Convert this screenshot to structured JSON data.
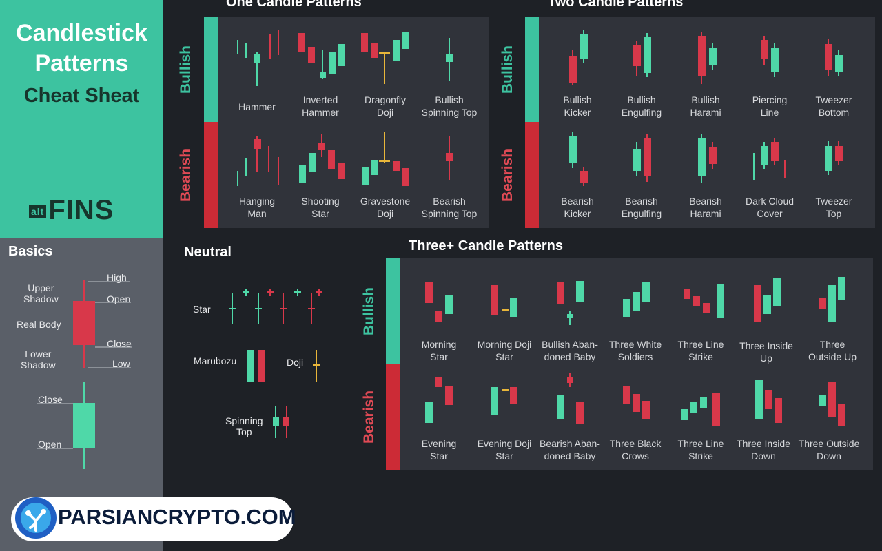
{
  "header": {
    "title_line1": "Candlestick",
    "title_line2": "Patterns",
    "subtitle": "Cheat Sheat",
    "logo_small": "alt",
    "logo_big": "FINS"
  },
  "basics": {
    "title": "Basics",
    "upper_shadow": "Upper\nShadow",
    "real_body": "Real Body",
    "lower_shadow": "Lower\nShadow",
    "high": "High",
    "open": "Open",
    "close": "Close",
    "low": "Low",
    "close2": "Close",
    "open2": "Open"
  },
  "one_candle": {
    "title": "One Candle Patterns",
    "bullish_label": "Bullish",
    "bearish_label": "Bearish",
    "bullish": [
      "Hammer",
      "Inverted\nHammer",
      "Dragonfly\nDoji",
      "Bullish\nSpinning Top"
    ],
    "bearish": [
      "Hanging\nMan",
      "Shooting\nStar",
      "Gravestone\nDoji",
      "Bearish\nSpinning Top"
    ]
  },
  "two_candle": {
    "title": "Two Candle Patterns",
    "bullish_label": "Bullish",
    "bearish_label": "Bearish",
    "bullish": [
      "Bullish\nKicker",
      "Bullish\nEngulfing",
      "Bullish\nHarami",
      "Piercing\nLine",
      "Tweezer\nBottom"
    ],
    "bearish": [
      "Bearish\nKicker",
      "Bearish\nEngulfing",
      "Bearish\nHarami",
      "Dark Cloud\nCover",
      "Tweezer\nTop"
    ]
  },
  "neutral": {
    "title": "Neutral",
    "star": "Star",
    "marubozu": "Marubozu",
    "doji": "Doji",
    "spinning_top": "Spinning\nTop"
  },
  "three_candle": {
    "title": "Three+ Candle Patterns",
    "bullish_label": "Bullish",
    "bearish_label": "Bearish",
    "bullish": [
      "Morning\nStar",
      "Morning Doji\nStar",
      "Bullish Aban-\ndoned Baby",
      "Three White\nSoldiers",
      "Three Line\nStrike",
      "Three Inside\nUp",
      "Three\nOutside Up"
    ],
    "bearish": [
      "Evening\nStar",
      "Evening Doji\nStar",
      "Bearish Aban-\ndoned Baby",
      "Three Black\nCrows",
      "Three Line\nStrike",
      "Three Inside\nDown",
      "Three Outside\nDown"
    ]
  },
  "watermark": {
    "text": "PARSIANCRYPTO.COM"
  },
  "colors": {
    "green": "#4fd8a8",
    "red": "#d8384a",
    "teal": "#3dc3a0",
    "gold": "#e8b63a"
  }
}
